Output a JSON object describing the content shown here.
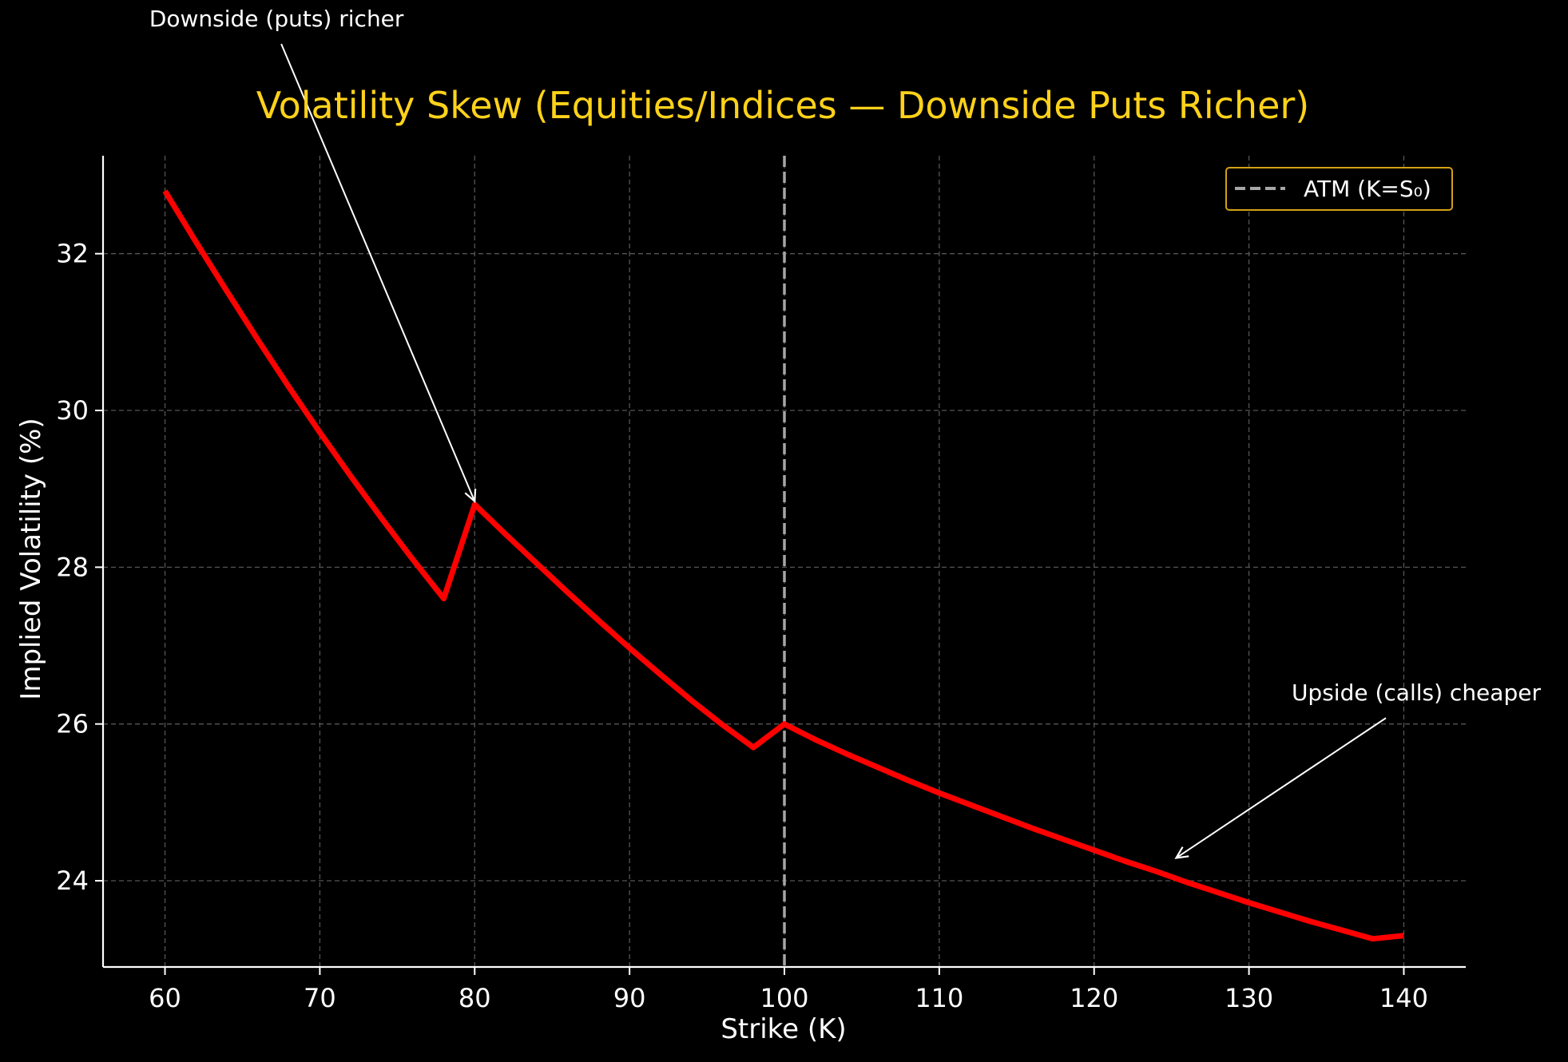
{
  "chart_data": {
    "type": "line",
    "title": "Volatility Skew (Equities/Indices — Downside Puts Richer)",
    "xlabel": "Strike (K)",
    "ylabel": "Implied Volatility (%)",
    "xlim": [
      56,
      144
    ],
    "ylim": [
      22.9,
      33.25
    ],
    "xticks": [
      60,
      70,
      80,
      90,
      100,
      110,
      120,
      130,
      140
    ],
    "yticks": [
      24,
      26,
      28,
      30,
      32
    ],
    "grid": true,
    "legend": {
      "position": "top-right",
      "entries": [
        "ATM (K=S₀)"
      ]
    },
    "series": [
      {
        "name": "",
        "color": "#ff0000",
        "x": [
          60,
          62,
          64,
          66,
          68,
          70,
          72,
          74,
          76,
          78,
          80,
          82,
          84,
          86,
          88,
          90,
          92,
          94,
          96,
          98,
          100,
          102,
          104,
          106,
          108,
          110,
          112,
          114,
          116,
          118,
          120,
          122,
          124,
          126,
          128,
          130,
          132,
          134,
          136,
          138,
          140
        ],
        "y": [
          32.8,
          32.15,
          31.52,
          30.9,
          30.3,
          29.72,
          29.16,
          28.62,
          28.1,
          27.6,
          28.8,
          28.42,
          28.05,
          27.68,
          27.32,
          26.97,
          26.63,
          26.3,
          25.99,
          25.7,
          26.0,
          25.8,
          25.62,
          25.45,
          25.28,
          25.12,
          24.97,
          24.82,
          24.67,
          24.53,
          24.39,
          24.25,
          24.12,
          23.98,
          23.85,
          23.72,
          23.6,
          23.48,
          23.37,
          23.26,
          23.3
        ]
      }
    ],
    "atm_line": {
      "x": 100,
      "color": "#a6a6a6",
      "label": "ATM (K=S₀)"
    },
    "annotations": [
      {
        "text": "Downside (puts) richer",
        "x": 80,
        "y": 28.8,
        "text_x": 67.2,
        "text_y": 34.9
      },
      {
        "text": "Upside (calls) cheaper",
        "x": 125.3,
        "y": 24.25,
        "text_x": 140.8,
        "text_y": 26.3
      }
    ],
    "colors": {
      "background": "#000000",
      "title": "#ffd21a",
      "text": "#ffffff",
      "grid": "#555555",
      "legend_border": "#d4a017"
    }
  }
}
